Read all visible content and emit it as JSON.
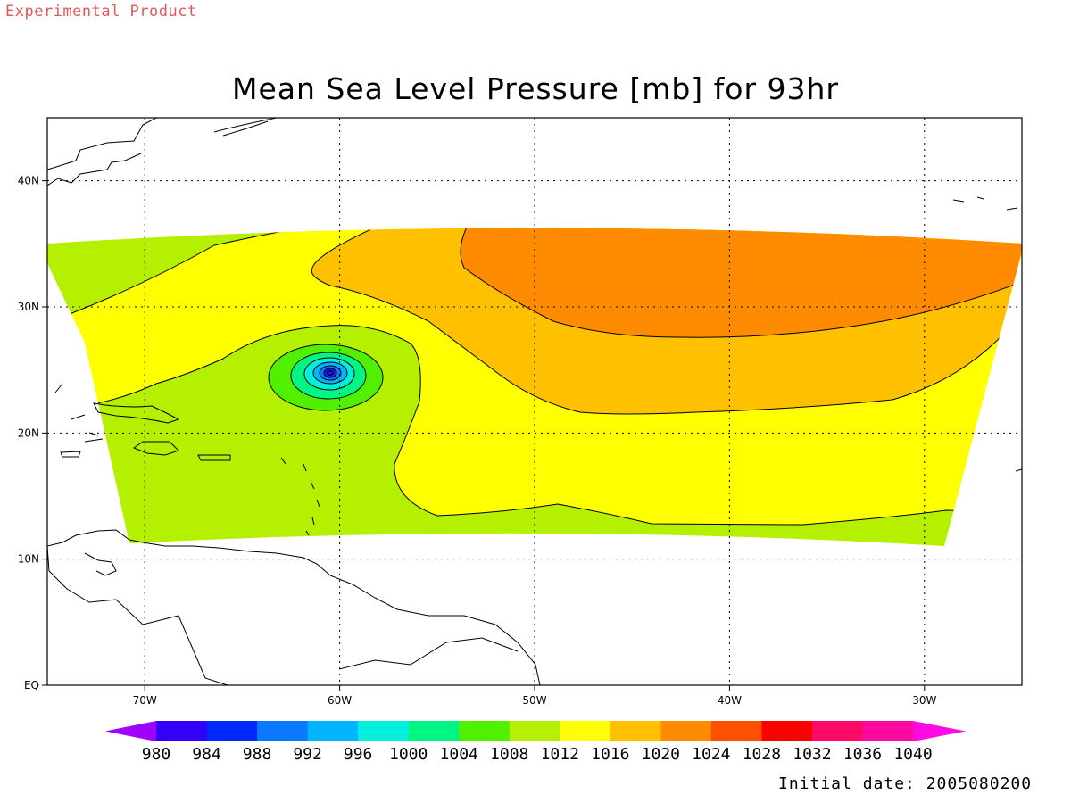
{
  "header": {
    "product_label": "Experimental Product",
    "title": "Mean Sea Level Pressure [mb] for 93hr",
    "initial_date": "Initial date: 2005080200"
  },
  "map": {
    "lon_ticks": [
      {
        "lon": -70,
        "label": "70W"
      },
      {
        "lon": -60,
        "label": "60W"
      },
      {
        "lon": -50,
        "label": "50W"
      },
      {
        "lon": -40,
        "label": "40W"
      },
      {
        "lon": -30,
        "label": "30W"
      }
    ],
    "lat_ticks": [
      {
        "lat": 0,
        "label": "EQ"
      },
      {
        "lat": 10,
        "label": "10N"
      },
      {
        "lat": 20,
        "label": "20N"
      },
      {
        "lat": 30,
        "label": "30N"
      },
      {
        "lat": 40,
        "label": "40N"
      }
    ],
    "lon_range": [
      -75,
      -25
    ],
    "lat_range": [
      0,
      45
    ],
    "grid": "dotted",
    "low_center": {
      "lon": -60.5,
      "lat": 24.8
    }
  },
  "colorbar": {
    "levels": [
      "980",
      "984",
      "988",
      "992",
      "996",
      "1000",
      "1004",
      "1008",
      "1012",
      "1016",
      "1020",
      "1024",
      "1028",
      "1032",
      "1036",
      "1040"
    ],
    "colors": [
      "#a000ff",
      "#3200ff",
      "#0028ff",
      "#0a78ff",
      "#00b4ff",
      "#00f0dc",
      "#00f582",
      "#50f000",
      "#b4f000",
      "#ffff00",
      "#ffc000",
      "#ff8c00",
      "#ff5000",
      "#ff0000",
      "#ff0a64",
      "#ff0aa0",
      "#ff0ae0"
    ]
  }
}
